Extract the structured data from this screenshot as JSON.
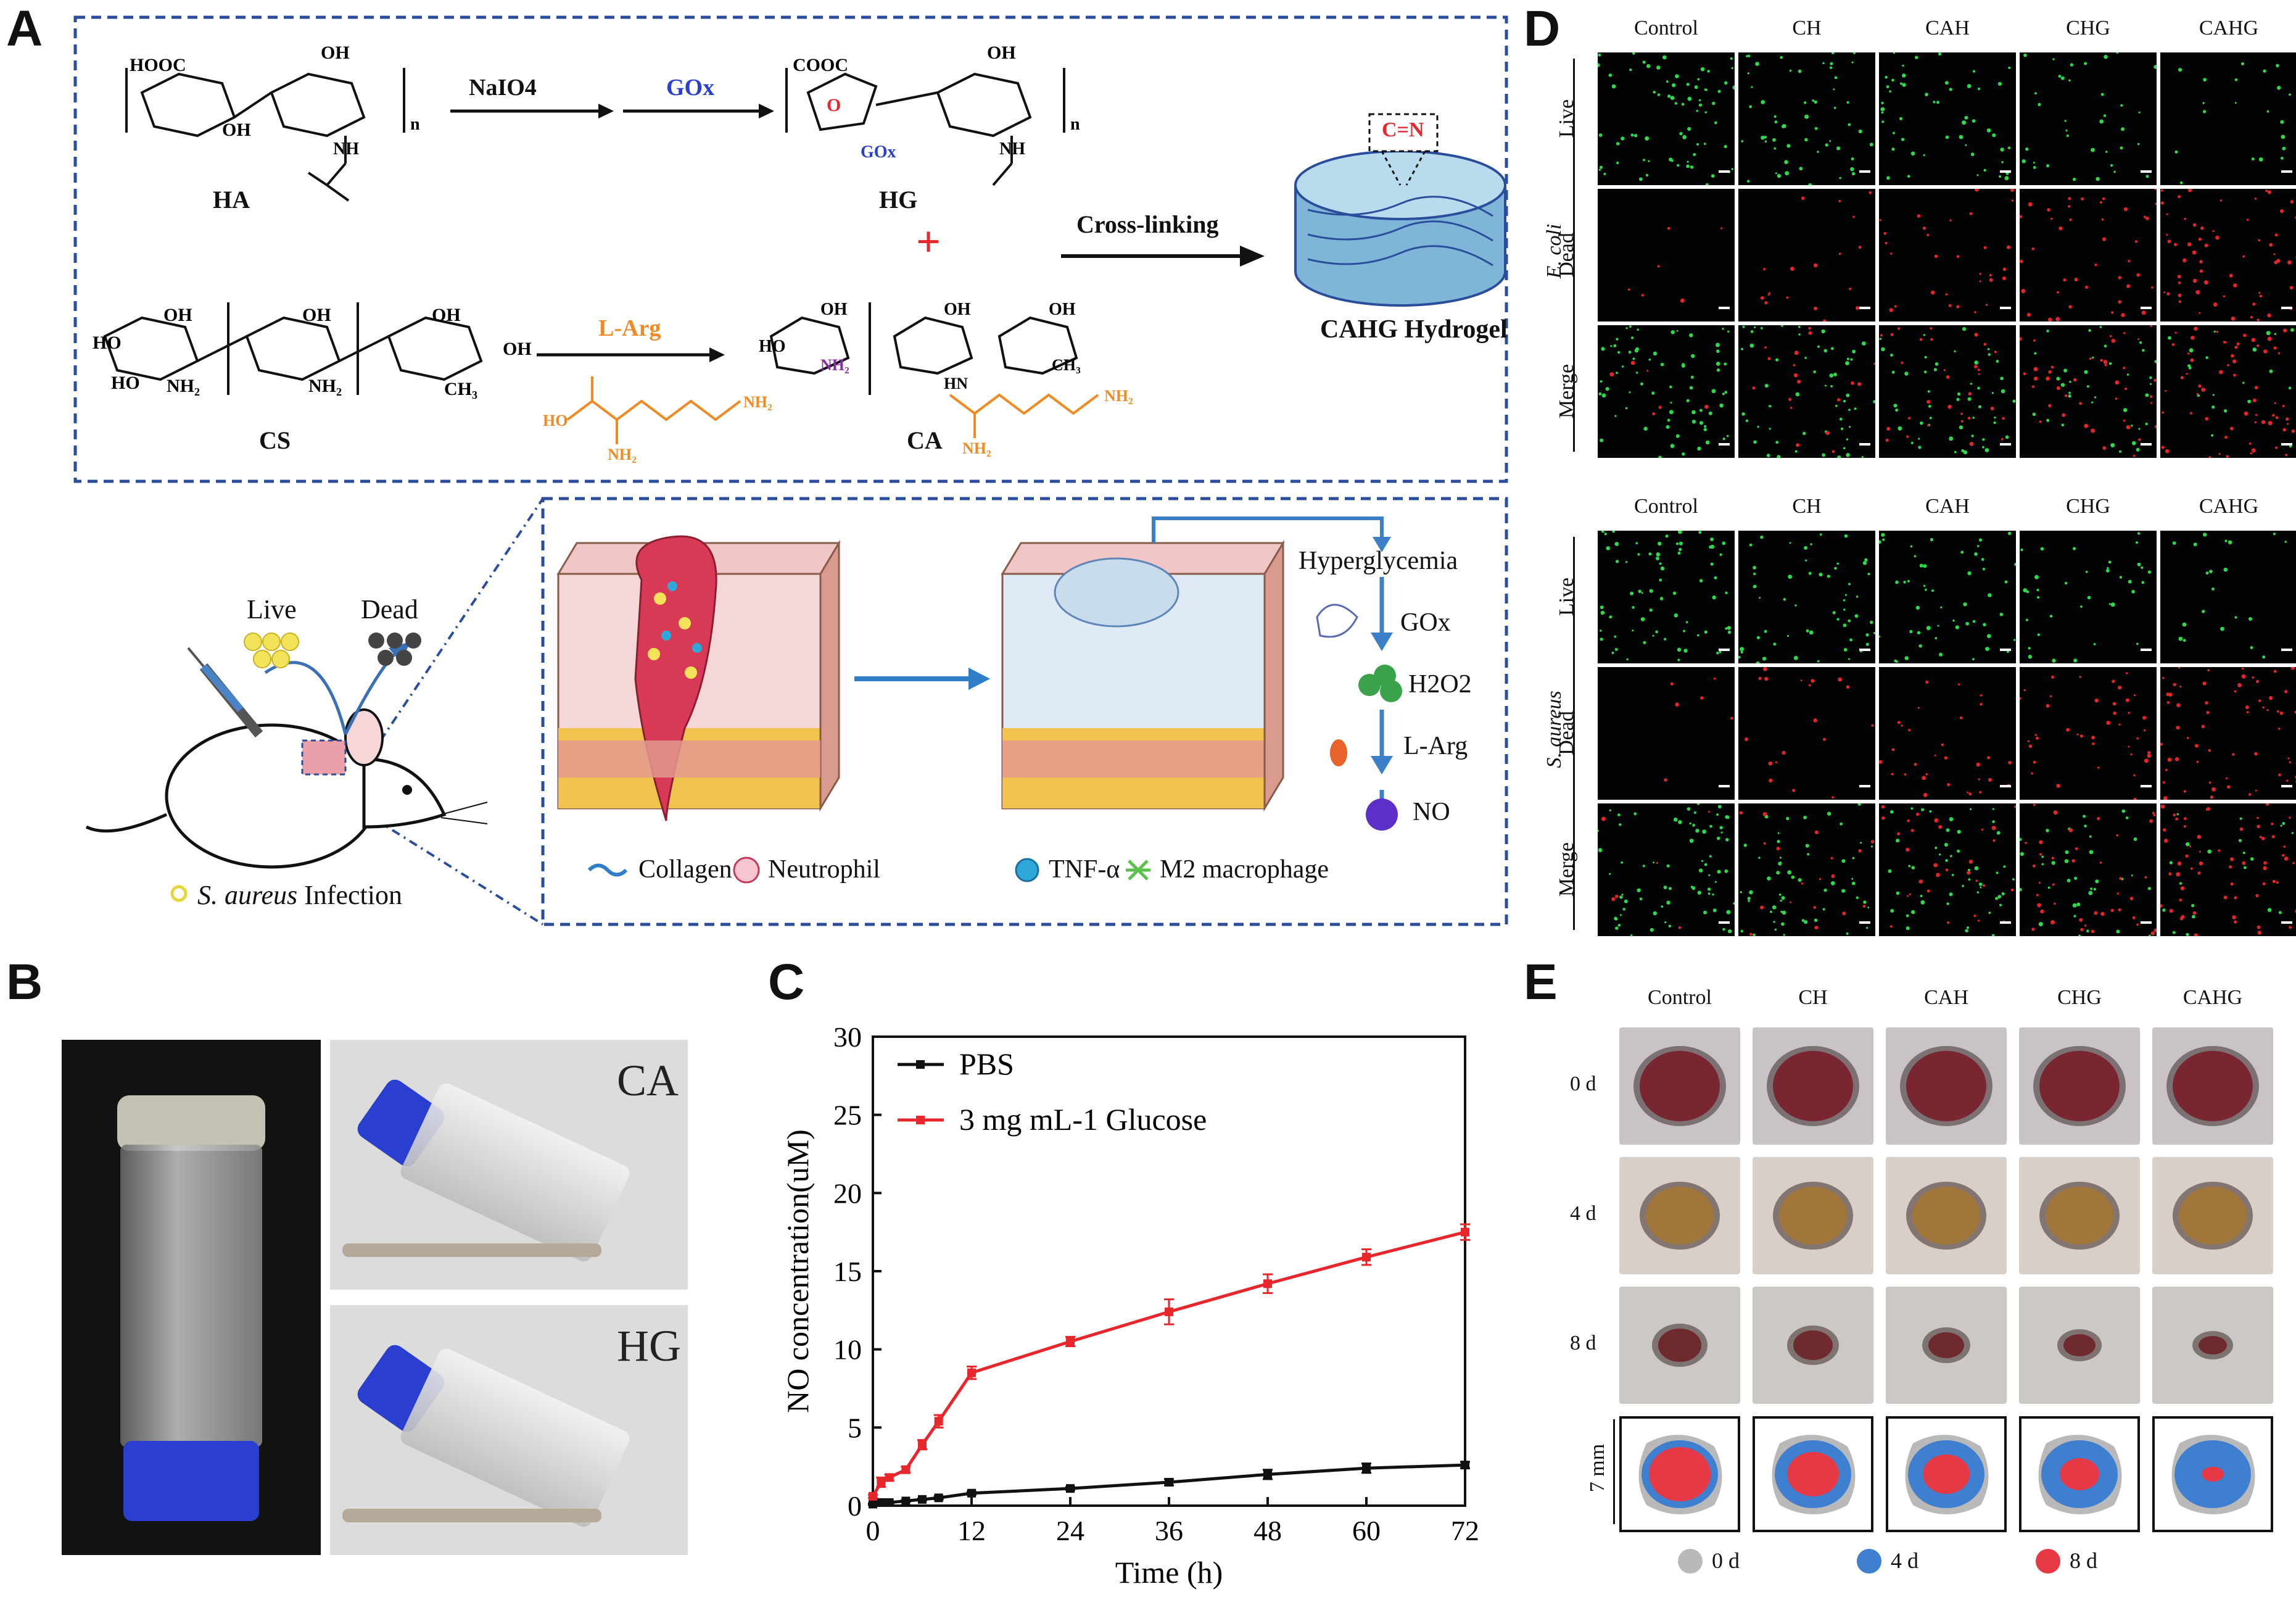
{
  "panel_labels": [
    "A",
    "B",
    "C",
    "D",
    "E"
  ],
  "panelA": {
    "reaction1": {
      "reactant": "HA",
      "reagent1": "NaIO4",
      "reagent2": "GOx",
      "product": "HG",
      "plus": "+",
      "crosslink_label": "Cross-linking",
      "hydrogel_label": "CAHG Hydrogel",
      "bond_label": "C=N"
    },
    "reaction2": {
      "reactant": "CS",
      "reagent": "L-Arg",
      "product": "CA"
    },
    "mouse": {
      "live": "Live",
      "dead": "Dead",
      "infection_species": "S. aureus",
      "infection_word": "Infection"
    },
    "pathway": [
      "Hyperglycemia",
      "GOx",
      "H2O2",
      "L-Arg",
      "NO"
    ],
    "legend": [
      "Collagen",
      "Neutrophil",
      "TNF-α",
      "M2 macrophage"
    ]
  },
  "panelB": {
    "vial_labels": [
      "CA",
      "HG"
    ]
  },
  "panelD": {
    "columns": [
      "Control",
      "CH",
      "CAH",
      "CHG",
      "CAHG"
    ],
    "rows": [
      "Live",
      "Dead",
      "Merge"
    ],
    "species": [
      "E. coli",
      "S. aureus"
    ]
  },
  "panelE": {
    "columns": [
      "Control",
      "CH",
      "CAH",
      "CHG",
      "CAHG"
    ],
    "days": [
      "0 d",
      "4 d",
      "8 d"
    ],
    "scale_label": "7 mm",
    "legend": [
      "0 d",
      "4 d",
      "8 d"
    ],
    "legend_colors": [
      "#b9b9b9",
      "#3f7fd0",
      "#e63946"
    ]
  },
  "colors": {
    "pbs": "#111111",
    "glucose": "#e8262b",
    "live": "#2fd84a",
    "dead": "#e3252a",
    "blue_dash": "#2b4e9c",
    "orange": "#f08a24"
  },
  "chart_data": {
    "type": "line",
    "title": "",
    "xlabel": "Time (h)",
    "ylabel": "NO concentration(uM)",
    "xlim": [
      0,
      72
    ],
    "ylim": [
      0,
      30
    ],
    "xticks": [
      0,
      12,
      24,
      36,
      48,
      60,
      72
    ],
    "yticks": [
      0,
      5,
      10,
      15,
      20,
      25,
      30
    ],
    "legend": {
      "position": "top-left",
      "entries": [
        "PBS",
        "3 mg mL-1 Glucose"
      ]
    },
    "series": [
      {
        "name": "PBS",
        "color": "#111111",
        "x": [
          0,
          1,
          2,
          4,
          6,
          8,
          12,
          24,
          36,
          48,
          60,
          72
        ],
        "y": [
          0.1,
          0.2,
          0.2,
          0.3,
          0.4,
          0.5,
          0.8,
          1.1,
          1.5,
          2.0,
          2.4,
          2.6
        ],
        "err": [
          0.05,
          0.05,
          0.05,
          0.05,
          0.05,
          0.1,
          0.1,
          0.1,
          0.2,
          0.3,
          0.3,
          0.2
        ]
      },
      {
        "name": "3 mg mL-1 Glucose",
        "color": "#e8262b",
        "x": [
          0,
          1,
          2,
          4,
          6,
          8,
          12,
          24,
          36,
          48,
          60,
          72
        ],
        "y": [
          0.6,
          1.5,
          1.8,
          2.3,
          3.9,
          5.4,
          8.5,
          10.5,
          12.4,
          14.2,
          15.9,
          17.5
        ],
        "err": [
          0.1,
          0.3,
          0.2,
          0.2,
          0.3,
          0.4,
          0.4,
          0.3,
          0.8,
          0.6,
          0.5,
          0.5
        ]
      }
    ]
  }
}
